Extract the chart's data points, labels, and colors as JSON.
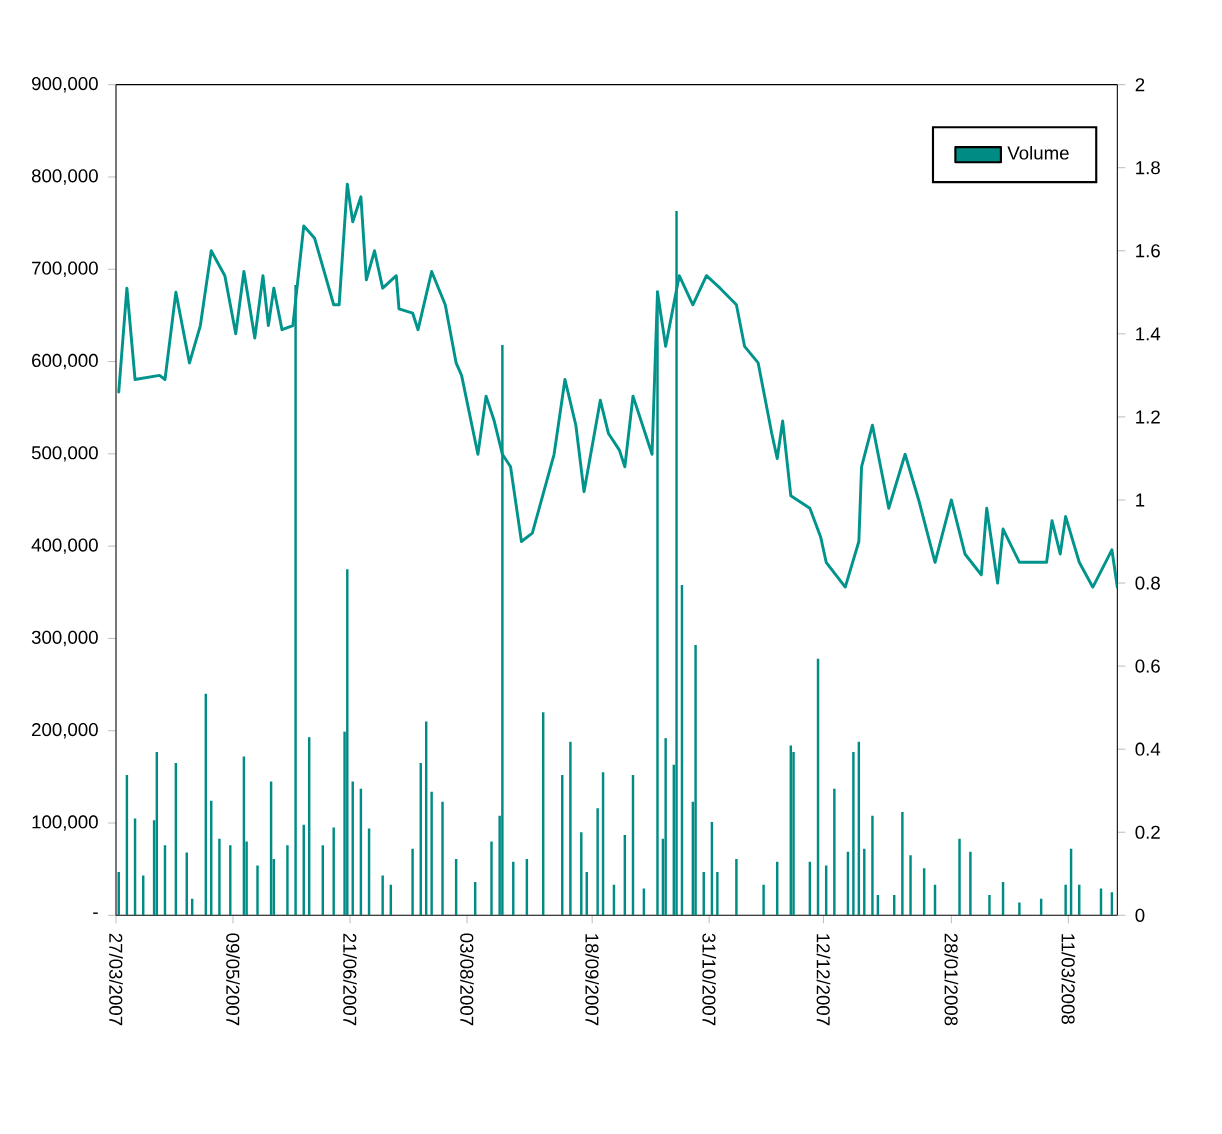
{
  "chart_data": {
    "type": "bar",
    "legend": "top right",
    "xlim": [
      "2007-03-27",
      "2008-03-29"
    ],
    "xticks": [
      {
        "value": "2007-03-27",
        "label": "27/03/2007"
      },
      {
        "value": "2007-05-09",
        "label": "09/05/2007"
      },
      {
        "value": "2007-06-21",
        "label": "21/06/2007"
      },
      {
        "value": "2007-08-03",
        "label": "03/08/2007"
      },
      {
        "value": "2007-09-18",
        "label": "18/09/2007"
      },
      {
        "value": "2007-10-31",
        "label": "31/10/2007"
      },
      {
        "value": "2007-12-12",
        "label": "12/12/2007"
      },
      {
        "value": "2008-01-28",
        "label": "28/01/2008"
      },
      {
        "value": "2008-03-11",
        "label": "11/03/2008"
      }
    ],
    "ylim": [
      0,
      900000
    ],
    "yticks": [
      {
        "value": 0,
        "label": "-"
      },
      {
        "value": 100000,
        "label": "100,000"
      },
      {
        "value": 200000,
        "label": "200,000"
      },
      {
        "value": 300000,
        "label": "300,000"
      },
      {
        "value": 400000,
        "label": "400,000"
      },
      {
        "value": 500000,
        "label": "500,000"
      },
      {
        "value": 600000,
        "label": "600,000"
      },
      {
        "value": 700000,
        "label": "700,000"
      },
      {
        "value": 800000,
        "label": "800,000"
      },
      {
        "value": 900000,
        "label": "900,000"
      }
    ],
    "y2lim": [
      0,
      2
    ],
    "y2ticks": [
      0,
      0.2,
      0.4,
      0.6,
      0.8,
      1,
      1.2,
      1.4,
      1.6,
      1.8,
      2
    ],
    "series": [
      {
        "name": "Volume",
        "color": "#008c84",
        "x": [
          "2007-03-28",
          "2007-03-31",
          "2007-04-03",
          "2007-04-06",
          "2007-04-10",
          "2007-04-11",
          "2007-04-14",
          "2007-04-18",
          "2007-04-22",
          "2007-04-24",
          "2007-04-29",
          "2007-05-01",
          "2007-05-04",
          "2007-05-08",
          "2007-05-13",
          "2007-05-14",
          "2007-05-18",
          "2007-05-23",
          "2007-05-24",
          "2007-05-29",
          "2007-06-01",
          "2007-06-04",
          "2007-06-06",
          "2007-06-11",
          "2007-06-15",
          "2007-06-19",
          "2007-06-20",
          "2007-06-22",
          "2007-06-25",
          "2007-06-28",
          "2007-07-03",
          "2007-07-06",
          "2007-07-14",
          "2007-07-17",
          "2007-07-19",
          "2007-07-21",
          "2007-07-25",
          "2007-07-30",
          "2007-08-06",
          "2007-08-12",
          "2007-08-15",
          "2007-08-16",
          "2007-08-20",
          "2007-08-25",
          "2007-08-31",
          "2007-09-07",
          "2007-09-10",
          "2007-09-14",
          "2007-09-16",
          "2007-09-20",
          "2007-09-22",
          "2007-09-26",
          "2007-09-30",
          "2007-10-03",
          "2007-10-07",
          "2007-10-12",
          "2007-10-14",
          "2007-10-15",
          "2007-10-18",
          "2007-10-19",
          "2007-10-21",
          "2007-10-25",
          "2007-10-26",
          "2007-10-29",
          "2007-11-01",
          "2007-11-03",
          "2007-11-10",
          "2007-11-20",
          "2007-11-25",
          "2007-11-30",
          "2007-12-01",
          "2007-12-07",
          "2007-12-10",
          "2007-12-13",
          "2007-12-16",
          "2007-12-21",
          "2007-12-23",
          "2007-12-25",
          "2007-12-27",
          "2007-12-30",
          "2008-01-01",
          "2008-01-07",
          "2008-01-10",
          "2008-01-13",
          "2008-01-18",
          "2008-01-22",
          "2008-01-31",
          "2008-02-04",
          "2008-02-11",
          "2008-02-16",
          "2008-02-22",
          "2008-03-01",
          "2008-03-10",
          "2008-03-12",
          "2008-03-15",
          "2008-03-23",
          "2008-03-27"
        ],
        "values": [
          47000,
          152000,
          105000,
          43000,
          103000,
          177000,
          76000,
          165000,
          68000,
          18000,
          240000,
          124000,
          83000,
          76000,
          172000,
          80000,
          54000,
          145000,
          61000,
          76000,
          683000,
          98000,
          193000,
          76000,
          95000,
          199000,
          375000,
          145000,
          137000,
          94000,
          43000,
          33000,
          72000,
          165000,
          210000,
          134000,
          123000,
          61000,
          36000,
          80000,
          108000,
          618000,
          58000,
          61000,
          220000,
          152000,
          188000,
          90000,
          47000,
          116000,
          155000,
          33000,
          87000,
          152000,
          29000,
          677000,
          83000,
          192000,
          163000,
          763000,
          358000,
          123000,
          293000,
          47000,
          101000,
          47000,
          61000,
          33000,
          58000,
          184000,
          177000,
          58000,
          278000,
          54000,
          137000,
          69000,
          177000,
          188000,
          72000,
          108000,
          22000,
          22000,
          112000,
          65000,
          51000,
          33000,
          83000,
          69000,
          22000,
          36000,
          14000,
          18000,
          33000,
          72000,
          33000,
          29000,
          25000
        ]
      },
      {
        "type": "line",
        "axis": "y2",
        "color": "#00948c",
        "x": [
          "2007-03-28",
          "2007-03-31",
          "2007-04-03",
          "2007-04-12",
          "2007-04-14",
          "2007-04-18",
          "2007-04-23",
          "2007-04-27",
          "2007-05-01",
          "2007-05-06",
          "2007-05-10",
          "2007-05-13",
          "2007-05-17",
          "2007-05-20",
          "2007-05-22",
          "2007-05-24",
          "2007-05-27",
          "2007-05-31",
          "2007-06-04",
          "2007-06-08",
          "2007-06-15",
          "2007-06-17",
          "2007-06-20",
          "2007-06-22",
          "2007-06-25",
          "2007-06-27",
          "2007-06-30",
          "2007-07-03",
          "2007-07-08",
          "2007-07-09",
          "2007-07-14",
          "2007-07-16",
          "2007-07-21",
          "2007-07-26",
          "2007-07-30",
          "2007-08-01",
          "2007-08-07",
          "2007-08-10",
          "2007-08-13",
          "2007-08-16",
          "2007-08-19",
          "2007-08-23",
          "2007-08-27",
          "2007-09-04",
          "2007-09-08",
          "2007-09-12",
          "2007-09-15",
          "2007-09-21",
          "2007-09-24",
          "2007-09-28",
          "2007-09-30",
          "2007-10-03",
          "2007-10-10",
          "2007-10-12",
          "2007-10-15",
          "2007-10-20",
          "2007-10-25",
          "2007-10-30",
          "2007-11-04",
          "2007-11-10",
          "2007-11-13",
          "2007-11-18",
          "2007-11-23",
          "2007-11-25",
          "2007-11-27",
          "2007-11-30",
          "2007-12-07",
          "2007-12-11",
          "2007-12-13",
          "2007-12-20",
          "2007-12-25",
          "2007-12-26",
          "2007-12-30",
          "2008-01-05",
          "2008-01-11",
          "2008-01-16",
          "2008-01-22",
          "2008-01-28",
          "2008-02-02",
          "2008-02-08",
          "2008-02-10",
          "2008-02-14",
          "2008-02-16",
          "2008-02-22",
          "2008-03-03",
          "2008-03-05",
          "2008-03-08",
          "2008-03-10",
          "2008-03-15",
          "2008-03-20",
          "2008-03-27",
          "2008-03-29"
        ],
        "values": [
          1.26,
          1.51,
          1.29,
          1.3,
          1.29,
          1.5,
          1.33,
          1.42,
          1.6,
          1.54,
          1.4,
          1.55,
          1.39,
          1.54,
          1.42,
          1.51,
          1.41,
          1.42,
          1.66,
          1.63,
          1.47,
          1.47,
          1.76,
          1.67,
          1.73,
          1.53,
          1.6,
          1.51,
          1.54,
          1.46,
          1.45,
          1.41,
          1.55,
          1.47,
          1.33,
          1.3,
          1.11,
          1.25,
          1.19,
          1.11,
          1.08,
          0.9,
          0.92,
          1.11,
          1.29,
          1.18,
          1.02,
          1.24,
          1.16,
          1.12,
          1.08,
          1.25,
          1.11,
          1.5,
          1.37,
          1.54,
          1.47,
          1.54,
          1.51,
          1.47,
          1.37,
          1.33,
          1.16,
          1.1,
          1.19,
          1.01,
          0.98,
          0.91,
          0.85,
          0.79,
          0.9,
          1.08,
          1.18,
          0.98,
          1.11,
          1.0,
          0.85,
          1.0,
          0.87,
          0.82,
          0.98,
          0.8,
          0.93,
          0.85,
          0.85,
          0.95,
          0.87,
          0.96,
          0.85,
          0.79,
          0.88,
          0.79
        ]
      }
    ]
  }
}
